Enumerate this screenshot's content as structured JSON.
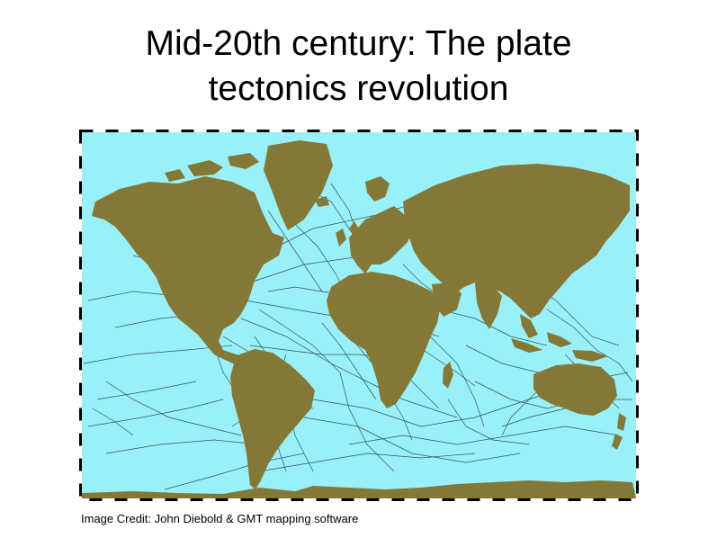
{
  "slide": {
    "title_line1": "Mid-20th century: The plate",
    "title_line2": "tectonics revolution",
    "credit": "Image Credit: John Diebold & GMT mapping software"
  },
  "map": {
    "ocean_color": "#9af0f8",
    "land_color": "#847836",
    "track_color": "#1d3a40",
    "border_color": "#000000"
  }
}
